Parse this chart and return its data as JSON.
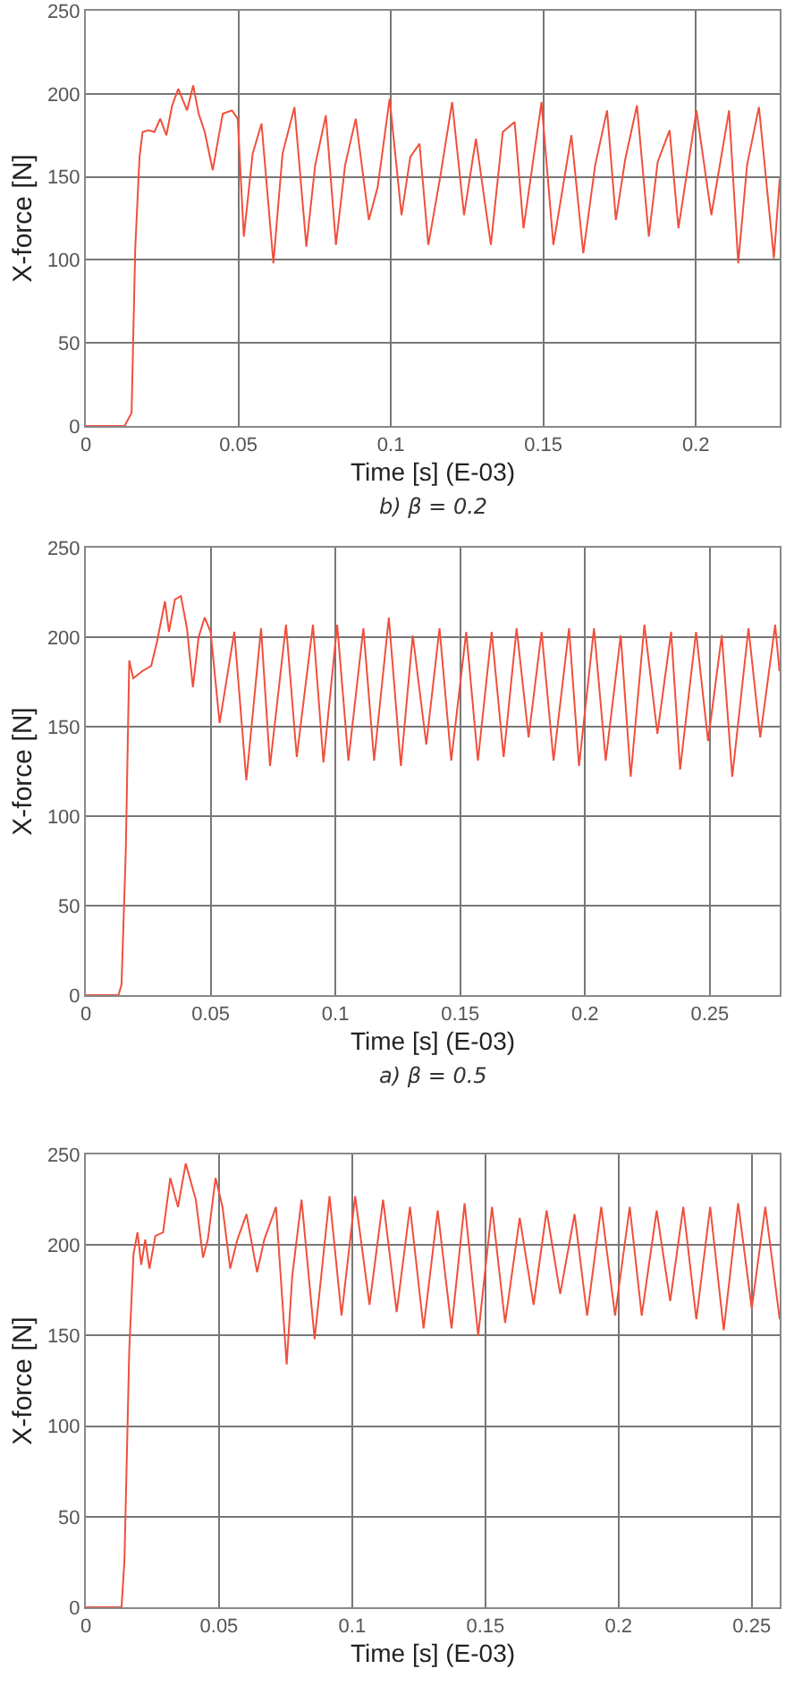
{
  "chart_data": [
    {
      "type": "line",
      "xlabel": "Time [s] (E-03)",
      "ylabel": "X-force [N]",
      "annotations": [
        "b) β = 0.2"
      ],
      "xlim": [
        0,
        0.2275
      ],
      "xticks": [
        0,
        0.05,
        0.1,
        0.15,
        0.2
      ],
      "ylim": [
        0,
        250
      ],
      "yticks": [
        0,
        50,
        100,
        150,
        200,
        250
      ],
      "grid": true,
      "legend": false,
      "line_style": "solid",
      "series": [
        {
          "color": "#f0503c",
          "x": [
            0,
            0.0127,
            0.015,
            0.0162,
            0.0176,
            0.0186,
            0.0205,
            0.0225,
            0.0244,
            0.0264,
            0.0283,
            0.0303,
            0.0332,
            0.0352,
            0.037,
            0.039,
            0.0416,
            0.0449,
            0.0479,
            0.0498,
            0.0518,
            0.0547,
            0.0576,
            0.0615,
            0.0645,
            0.0684,
            0.0723,
            0.0752,
            0.0787,
            0.082,
            0.085,
            0.0885,
            0.0928,
            0.0957,
            0.0996,
            0.1035,
            0.1064,
            0.1094,
            0.1123,
            0.1162,
            0.1201,
            0.124,
            0.1279,
            0.1328,
            0.1367,
            0.1406,
            0.1435,
            0.1494,
            0.1533,
            0.1592,
            0.1631,
            0.167,
            0.1709,
            0.1738,
            0.1768,
            0.1807,
            0.1846,
            0.1875,
            0.1914,
            0.1943,
            0.2002,
            0.2051,
            0.2109,
            0.2139,
            0.2168,
            0.2207,
            0.2256,
            0.2275
          ],
          "values": [
            0,
            0,
            8,
            107,
            162,
            177,
            178,
            177,
            185,
            175,
            193,
            203,
            190,
            205,
            188,
            177,
            154,
            188,
            190,
            185,
            114,
            164,
            182,
            98,
            164,
            192,
            108,
            157,
            187,
            109,
            157,
            185,
            124,
            144,
            197,
            127,
            162,
            170,
            109,
            150,
            195,
            127,
            173,
            109,
            177,
            183,
            119,
            195,
            109,
            175,
            104,
            157,
            190,
            124,
            160,
            193,
            114,
            159,
            178,
            119,
            190,
            127,
            190,
            98,
            157,
            192,
            101,
            149
          ]
        }
      ]
    },
    {
      "type": "line",
      "xlabel": "Time [s] (E-03)",
      "ylabel": "X-force [N]",
      "annotations": [
        "a) β = 0.5"
      ],
      "xlim": [
        0,
        0.278
      ],
      "xticks": [
        0,
        0.05,
        0.1,
        0.15,
        0.2,
        0.25
      ],
      "ylim": [
        0,
        250
      ],
      "yticks": [
        0,
        50,
        100,
        150,
        200,
        250
      ],
      "grid": true,
      "legend": false,
      "line_style": "solid",
      "series": [
        {
          "color": "#f0503c",
          "x": [
            0,
            0.0131,
            0.0143,
            0.016,
            0.0174,
            0.019,
            0.0226,
            0.0262,
            0.0286,
            0.0317,
            0.0333,
            0.0357,
            0.0381,
            0.0405,
            0.0429,
            0.0452,
            0.0476,
            0.05,
            0.0536,
            0.0595,
            0.0643,
            0.0702,
            0.0738,
            0.0802,
            0.0845,
            0.091,
            0.0952,
            0.1007,
            0.1052,
            0.1112,
            0.1155,
            0.1214,
            0.1262,
            0.131,
            0.1364,
            0.1417,
            0.1464,
            0.1524,
            0.1571,
            0.1626,
            0.1674,
            0.1726,
            0.1774,
            0.1826,
            0.1874,
            0.1936,
            0.1976,
            0.2036,
            0.2083,
            0.2143,
            0.2183,
            0.2238,
            0.229,
            0.2345,
            0.2381,
            0.2445,
            0.2493,
            0.2548,
            0.259,
            0.2655,
            0.2702,
            0.2762,
            0.2779
          ],
          "values": [
            0,
            0,
            6,
            80,
            187,
            177,
            181,
            184,
            198,
            220,
            203,
            221,
            223,
            205,
            172,
            200,
            211,
            203,
            152,
            203,
            120,
            205,
            128,
            207,
            133,
            207,
            130,
            207,
            131,
            205,
            131,
            211,
            128,
            201,
            140,
            205,
            131,
            203,
            131,
            203,
            133,
            205,
            144,
            203,
            131,
            205,
            128,
            205,
            131,
            201,
            122,
            207,
            146,
            203,
            126,
            203,
            142,
            201,
            122,
            205,
            144,
            207,
            181
          ]
        }
      ]
    },
    {
      "type": "line",
      "xlabel": "Time [s] (E-03)",
      "ylabel": "X-force [N]",
      "xlim": [
        0,
        0.2605
      ],
      "xticks": [
        0,
        0.05,
        0.1,
        0.15,
        0.2,
        0.25
      ],
      "ylim": [
        0,
        250
      ],
      "yticks": [
        0,
        50,
        100,
        150,
        200,
        250
      ],
      "grid": true,
      "legend": false,
      "line_style": "solid",
      "series": [
        {
          "color": "#f0503c",
          "x": [
            0,
            0.0134,
            0.0145,
            0.0163,
            0.0179,
            0.0194,
            0.0208,
            0.0223,
            0.0239,
            0.0261,
            0.029,
            0.0317,
            0.0346,
            0.0375,
            0.0413,
            0.044,
            0.0458,
            0.0487,
            0.0513,
            0.0542,
            0.0569,
            0.0603,
            0.0643,
            0.067,
            0.0714,
            0.0754,
            0.0775,
            0.081,
            0.0859,
            0.0915,
            0.096,
            0.1011,
            0.1065,
            0.1116,
            0.1167,
            0.1217,
            0.1268,
            0.1321,
            0.1373,
            0.1422,
            0.1473,
            0.1525,
            0.1574,
            0.1629,
            0.1681,
            0.173,
            0.1781,
            0.1835,
            0.1882,
            0.1935,
            0.1987,
            0.2042,
            0.2087,
            0.2143,
            0.2194,
            0.2243,
            0.2292,
            0.2344,
            0.2395,
            0.2449,
            0.25,
            0.2551,
            0.2605
          ],
          "values": [
            0,
            0,
            26,
            142,
            195,
            207,
            189,
            203,
            187,
            205,
            207,
            237,
            221,
            245,
            225,
            193,
            203,
            237,
            221,
            187,
            203,
            217,
            185,
            203,
            221,
            134,
            183,
            225,
            148,
            227,
            161,
            227,
            167,
            225,
            163,
            221,
            154,
            219,
            154,
            223,
            150,
            221,
            157,
            215,
            167,
            219,
            173,
            217,
            161,
            221,
            161,
            221,
            161,
            219,
            169,
            221,
            159,
            221,
            153,
            223,
            165,
            221,
            159
          ]
        }
      ]
    }
  ]
}
